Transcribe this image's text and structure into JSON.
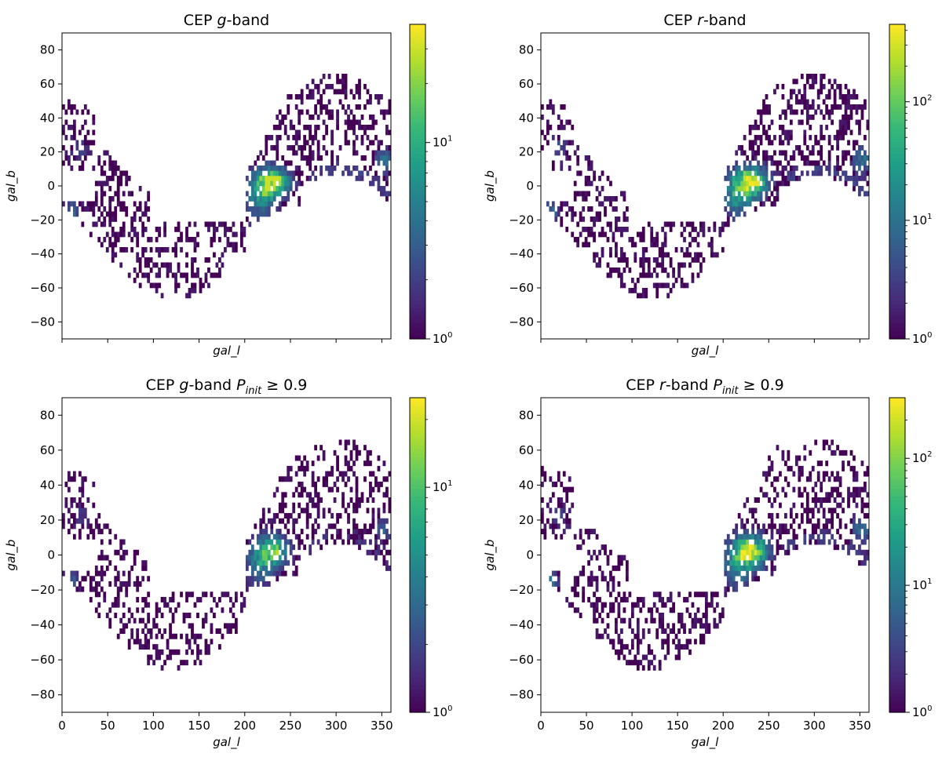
{
  "colormap": [
    "#440154",
    "#482878",
    "#3e4989",
    "#31688e",
    "#26828e",
    "#1f9e89",
    "#35b779",
    "#6ece58",
    "#b5de2b",
    "#fde725"
  ],
  "chart_data": [
    {
      "type": "heatmap",
      "id": "g",
      "title": {
        "pre": "CEP ",
        "band": "g",
        "post": "-band",
        "cond": ""
      },
      "xlabel": "gal_l",
      "ylabel": "gal_b",
      "xlim": [
        0,
        360
      ],
      "ylim": [
        -90,
        90
      ],
      "xticks": [
        0,
        50,
        100,
        150,
        200,
        250,
        300,
        350
      ],
      "yticks": [
        -80,
        -60,
        -40,
        -20,
        0,
        20,
        40,
        60,
        80
      ],
      "show_xtick_labels": false,
      "show_xlabel": true,
      "colorbar": {
        "scale": "log",
        "vmin": 1,
        "vmax": 40,
        "ticks": [
          {
            "base": "10",
            "exp": "0",
            "value": 1
          },
          {
            "base": "10",
            "exp": "1",
            "value": 10
          }
        ]
      },
      "peak_value": 30,
      "density": 1.0
    },
    {
      "type": "heatmap",
      "id": "r",
      "title": {
        "pre": "CEP ",
        "band": "r",
        "post": "-band",
        "cond": ""
      },
      "xlabel": "gal_l",
      "ylabel": "gal_b",
      "xlim": [
        0,
        360
      ],
      "ylim": [
        -90,
        90
      ],
      "xticks": [
        0,
        50,
        100,
        150,
        200,
        250,
        300,
        350
      ],
      "yticks": [
        -80,
        -60,
        -40,
        -20,
        0,
        20,
        40,
        60,
        80
      ],
      "show_xtick_labels": false,
      "show_xlabel": true,
      "colorbar": {
        "scale": "log",
        "vmin": 1,
        "vmax": 450,
        "ticks": [
          {
            "base": "10",
            "exp": "0",
            "value": 1
          },
          {
            "base": "10",
            "exp": "1",
            "value": 10
          },
          {
            "base": "10",
            "exp": "2",
            "value": 100
          }
        ]
      },
      "peak_value": 400,
      "density": 1.0
    },
    {
      "type": "heatmap",
      "id": "g09",
      "title": {
        "pre": "CEP ",
        "band": "g",
        "post": "-band ",
        "cond": "P",
        "cond_sub": "init",
        "cond_rest": " ≥ 0.9"
      },
      "xlabel": "gal_l",
      "ylabel": "gal_b",
      "xlim": [
        0,
        360
      ],
      "ylim": [
        -90,
        90
      ],
      "xticks": [
        0,
        50,
        100,
        150,
        200,
        250,
        300,
        350
      ],
      "yticks": [
        -80,
        -60,
        -40,
        -20,
        0,
        20,
        40,
        60,
        80
      ],
      "show_xtick_labels": true,
      "show_xlabel": true,
      "colorbar": {
        "scale": "log",
        "vmin": 1,
        "vmax": 25,
        "ticks": [
          {
            "base": "10",
            "exp": "0",
            "value": 1
          },
          {
            "base": "10",
            "exp": "1",
            "value": 10
          }
        ]
      },
      "peak_value": 18,
      "density": 0.85
    },
    {
      "type": "heatmap",
      "id": "r09",
      "title": {
        "pre": "CEP ",
        "band": "r",
        "post": "-band ",
        "cond": "P",
        "cond_sub": "init",
        "cond_rest": " ≥ 0.9"
      },
      "xlabel": "gal_l",
      "ylabel": "gal_b",
      "xlim": [
        0,
        360
      ],
      "ylim": [
        -90,
        90
      ],
      "xticks": [
        0,
        50,
        100,
        150,
        200,
        250,
        300,
        350
      ],
      "yticks": [
        -80,
        -60,
        -40,
        -20,
        0,
        20,
        40,
        60,
        80
      ],
      "show_xtick_labels": true,
      "show_xlabel": true,
      "colorbar": {
        "scale": "log",
        "vmin": 1,
        "vmax": 300,
        "ticks": [
          {
            "base": "10",
            "exp": "0",
            "value": 1
          },
          {
            "base": "10",
            "exp": "1",
            "value": 10
          },
          {
            "base": "10",
            "exp": "2",
            "value": 100
          }
        ]
      },
      "peak_value": 280,
      "density": 0.95
    }
  ]
}
